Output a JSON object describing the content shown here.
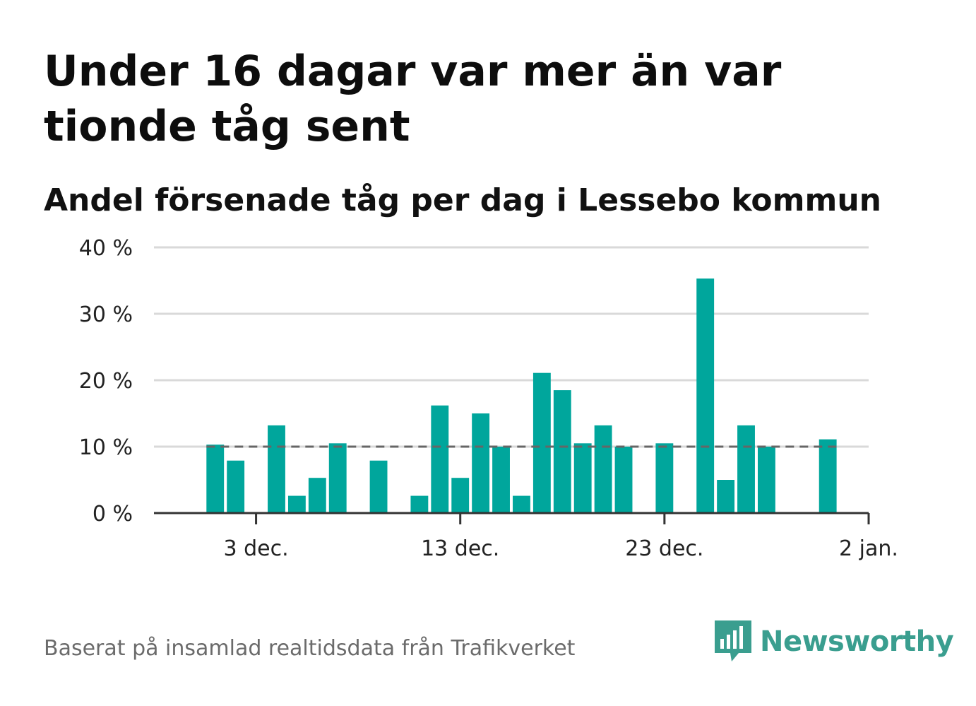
{
  "title": "Under 16 dagar var mer än var tionde tåg sent",
  "subtitle": "Andel försenade tåg per dag i Lessebo kommun",
  "footer": "Baserat på insamlad realtidsdata från Trafikverket",
  "brand": {
    "name": "Newsworthy",
    "icon": "newsworthy-logo-icon",
    "color": "#3a9e8f"
  },
  "colors": {
    "bar": "#00a69c",
    "reference_line": "#666666",
    "grid": "#d9d9d9",
    "axis": "#333333"
  },
  "chart_data": {
    "type": "bar",
    "title": "Andel försenade tåg per dag i Lessebo kommun",
    "xlabel": "",
    "ylabel": "",
    "ylim": [
      0,
      40
    ],
    "y_ticks": [
      {
        "value": 0,
        "label": "0 %"
      },
      {
        "value": 10,
        "label": "10 %"
      },
      {
        "value": 20,
        "label": "20 %"
      },
      {
        "value": 30,
        "label": "30 %"
      },
      {
        "value": 40,
        "label": "40 %"
      }
    ],
    "x_range": [
      "2022-11-28",
      "2023-01-02"
    ],
    "x_ticks": [
      {
        "date": "2022-12-03",
        "label": "3 dec."
      },
      {
        "date": "2022-12-13",
        "label": "13 dec."
      },
      {
        "date": "2022-12-23",
        "label": "23 dec."
      },
      {
        "date": "2023-01-02",
        "label": "2 jan."
      }
    ],
    "reference_line": {
      "value": 10,
      "style": "dashed"
    },
    "grid": true,
    "series": [
      {
        "data": [
          {
            "date": "2022-12-01",
            "value": 10.3
          },
          {
            "date": "2022-12-02",
            "value": 7.9
          },
          {
            "date": "2022-12-03",
            "value": 0
          },
          {
            "date": "2022-12-04",
            "value": 13.2
          },
          {
            "date": "2022-12-05",
            "value": 2.6
          },
          {
            "date": "2022-12-06",
            "value": 5.3
          },
          {
            "date": "2022-12-07",
            "value": 10.5
          },
          {
            "date": "2022-12-08",
            "value": 0
          },
          {
            "date": "2022-12-09",
            "value": 7.9
          },
          {
            "date": "2022-12-10",
            "value": 0
          },
          {
            "date": "2022-12-11",
            "value": 2.6
          },
          {
            "date": "2022-12-12",
            "value": 16.2
          },
          {
            "date": "2022-12-13",
            "value": 5.3
          },
          {
            "date": "2022-12-14",
            "value": 15.0
          },
          {
            "date": "2022-12-15",
            "value": 10.0
          },
          {
            "date": "2022-12-16",
            "value": 2.6
          },
          {
            "date": "2022-12-17",
            "value": 21.1
          },
          {
            "date": "2022-12-18",
            "value": 18.5
          },
          {
            "date": "2022-12-19",
            "value": 10.5
          },
          {
            "date": "2022-12-20",
            "value": 13.2
          },
          {
            "date": "2022-12-21",
            "value": 10.0
          },
          {
            "date": "2022-12-22",
            "value": 0
          },
          {
            "date": "2022-12-23",
            "value": 10.5
          },
          {
            "date": "2022-12-24",
            "value": 0
          },
          {
            "date": "2022-12-25",
            "value": 35.3
          },
          {
            "date": "2022-12-26",
            "value": 5.0
          },
          {
            "date": "2022-12-27",
            "value": 13.2
          },
          {
            "date": "2022-12-28",
            "value": 10.0
          },
          {
            "date": "2022-12-29",
            "value": 0
          },
          {
            "date": "2022-12-30",
            "value": 0
          },
          {
            "date": "2022-12-31",
            "value": 11.1
          }
        ]
      }
    ]
  }
}
